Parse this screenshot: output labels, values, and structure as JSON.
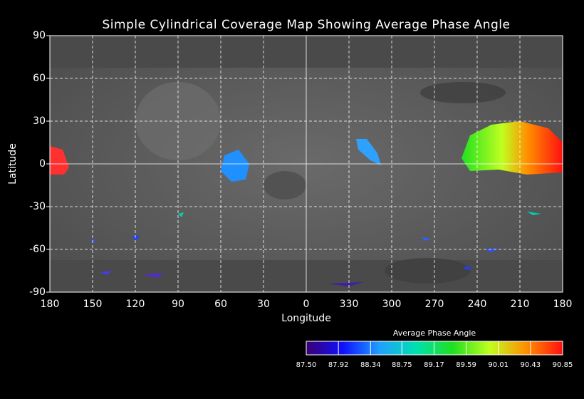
{
  "map": {
    "title": "Simple Cylindrical Coverage Map Showing Average Phase Angle",
    "x_label": "Longitude",
    "y_label": "Latitude",
    "lon_ticks": [
      180,
      150,
      120,
      90,
      60,
      30,
      0,
      330,
      300,
      270,
      240,
      210,
      180
    ],
    "lat_range": [
      -90,
      90
    ],
    "lat_ticks": [
      90,
      60,
      30,
      0,
      -30,
      -60,
      -90
    ],
    "colorbar": {
      "title": "Average Phase Angle",
      "range": [
        87.5,
        90.85
      ],
      "colors": [
        "#3a0070",
        "#1010ff",
        "#20a0ff",
        "#00e0b0",
        "#20e020",
        "#c0ff20",
        "#ff9000",
        "#ff1010"
      ],
      "ticks": [
        {
          "value": 87.5,
          "label": "87.50"
        },
        {
          "value": 87.92,
          "label": "87.92"
        },
        {
          "value": 88.34,
          "label": "88.34"
        },
        {
          "value": 88.75,
          "label": "88.75"
        },
        {
          "value": 89.17,
          "label": "89.17"
        },
        {
          "value": 89.59,
          "label": "89.59"
        },
        {
          "value": 90.01,
          "label": "90.01"
        },
        {
          "value": 90.43,
          "label": "90.43"
        },
        {
          "value": 90.85,
          "label": "90.85"
        }
      ]
    }
  }
}
